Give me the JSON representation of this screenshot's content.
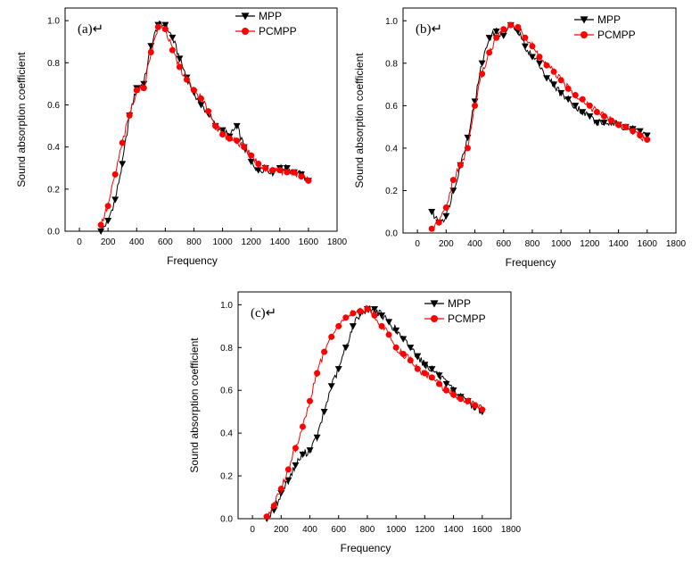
{
  "colors": {
    "mpp": "#000000",
    "pcmpp": "#ff0000"
  },
  "chart_data": [
    {
      "type": "line",
      "panel_label": "(a)↵",
      "xlabel": "Frequency",
      "ylabel": "Sound absorption coefficient",
      "xlim": [
        -100,
        1800
      ],
      "ylim": [
        0,
        1.06
      ],
      "xticks": [
        "0",
        "200",
        "400",
        "600",
        "800",
        "1000",
        "1200",
        "1400",
        "1600",
        "1800"
      ],
      "yticks": [
        "0.0",
        "0.2",
        "0.4",
        "0.6",
        "0.8",
        "1.0"
      ],
      "legend_position": "top-right",
      "series": [
        {
          "name": "MPP",
          "marker": "triangle-down",
          "x": [
            150,
            200,
            250,
            300,
            350,
            400,
            450,
            500,
            550,
            600,
            650,
            700,
            750,
            800,
            850,
            900,
            950,
            1000,
            1050,
            1100,
            1150,
            1200,
            1250,
            1300,
            1350,
            1400,
            1450,
            1500,
            1550,
            1600
          ],
          "y": [
            0.0,
            0.05,
            0.15,
            0.32,
            0.55,
            0.68,
            0.7,
            0.88,
            0.98,
            0.98,
            0.92,
            0.82,
            0.73,
            0.66,
            0.6,
            0.56,
            0.5,
            0.48,
            0.45,
            0.5,
            0.4,
            0.33,
            0.29,
            0.3,
            0.28,
            0.3,
            0.3,
            0.28,
            0.27,
            0.24
          ]
        },
        {
          "name": "PCMPP",
          "marker": "circle",
          "x": [
            150,
            200,
            250,
            300,
            350,
            400,
            450,
            500,
            550,
            600,
            650,
            700,
            750,
            800,
            850,
            900,
            950,
            1000,
            1050,
            1100,
            1150,
            1200,
            1250,
            1300,
            1350,
            1400,
            1450,
            1500,
            1550,
            1600
          ],
          "y": [
            0.03,
            0.12,
            0.27,
            0.42,
            0.55,
            0.67,
            0.68,
            0.85,
            0.97,
            0.96,
            0.86,
            0.78,
            0.72,
            0.67,
            0.63,
            0.57,
            0.5,
            0.46,
            0.44,
            0.43,
            0.4,
            0.36,
            0.32,
            0.3,
            0.29,
            0.29,
            0.28,
            0.28,
            0.26,
            0.24
          ]
        }
      ]
    },
    {
      "type": "line",
      "panel_label": "(b)↵",
      "xlabel": "Frequency",
      "ylabel": "Sound absorption coefficient",
      "xlim": [
        -100,
        1800
      ],
      "ylim": [
        0,
        1.06
      ],
      "xticks": [
        "0",
        "200",
        "400",
        "600",
        "800",
        "1000",
        "1200",
        "1400",
        "1600",
        "1800"
      ],
      "yticks": [
        "0.0",
        "0.2",
        "0.4",
        "0.6",
        "0.8",
        "1.0"
      ],
      "legend_position": "top-right",
      "series": [
        {
          "name": "MPP",
          "marker": "triangle-down",
          "x": [
            100,
            150,
            200,
            250,
            300,
            350,
            400,
            450,
            500,
            550,
            600,
            650,
            700,
            750,
            800,
            850,
            900,
            950,
            1000,
            1050,
            1100,
            1150,
            1200,
            1250,
            1300,
            1350,
            1400,
            1450,
            1500,
            1550,
            1600
          ],
          "y": [
            0.1,
            0.05,
            0.08,
            0.2,
            0.32,
            0.45,
            0.62,
            0.8,
            0.92,
            0.95,
            0.93,
            0.98,
            0.95,
            0.88,
            0.83,
            0.8,
            0.73,
            0.7,
            0.66,
            0.63,
            0.6,
            0.57,
            0.55,
            0.52,
            0.52,
            0.52,
            0.51,
            0.5,
            0.49,
            0.48,
            0.46
          ]
        },
        {
          "name": "PCMPP",
          "marker": "circle",
          "x": [
            100,
            150,
            200,
            250,
            300,
            350,
            400,
            450,
            500,
            550,
            600,
            650,
            700,
            750,
            800,
            850,
            900,
            950,
            1000,
            1050,
            1100,
            1150,
            1200,
            1250,
            1300,
            1350,
            1400,
            1450,
            1500,
            1550,
            1600
          ],
          "y": [
            0.02,
            0.05,
            0.12,
            0.25,
            0.32,
            0.4,
            0.6,
            0.75,
            0.85,
            0.92,
            0.96,
            0.98,
            0.97,
            0.92,
            0.88,
            0.83,
            0.79,
            0.76,
            0.72,
            0.68,
            0.65,
            0.63,
            0.6,
            0.57,
            0.55,
            0.53,
            0.51,
            0.5,
            0.48,
            0.46,
            0.44
          ]
        }
      ]
    },
    {
      "type": "line",
      "panel_label": "(c)↵",
      "xlabel": "Frequency",
      "ylabel": "Sound absorption coefficient",
      "xlim": [
        -100,
        1800
      ],
      "ylim": [
        0,
        1.06
      ],
      "xticks": [
        "0",
        "200",
        "400",
        "600",
        "800",
        "1000",
        "1200",
        "1400",
        "1600",
        "1800"
      ],
      "yticks": [
        "0.0",
        "0.2",
        "0.4",
        "0.6",
        "0.8",
        "1.0"
      ],
      "legend_position": "top-right",
      "series": [
        {
          "name": "MPP",
          "marker": "triangle-down",
          "x": [
            100,
            150,
            200,
            250,
            300,
            350,
            400,
            450,
            500,
            550,
            600,
            650,
            700,
            750,
            800,
            850,
            900,
            950,
            1000,
            1050,
            1100,
            1150,
            1200,
            1250,
            1300,
            1350,
            1400,
            1450,
            1500,
            1550,
            1600
          ],
          "y": [
            0.0,
            0.04,
            0.12,
            0.18,
            0.25,
            0.3,
            0.32,
            0.38,
            0.5,
            0.62,
            0.7,
            0.8,
            0.9,
            0.96,
            0.98,
            0.98,
            0.95,
            0.92,
            0.88,
            0.84,
            0.8,
            0.76,
            0.72,
            0.7,
            0.67,
            0.63,
            0.6,
            0.57,
            0.55,
            0.52,
            0.5
          ]
        },
        {
          "name": "PCMPP",
          "marker": "circle",
          "x": [
            100,
            150,
            200,
            250,
            300,
            350,
            400,
            450,
            500,
            550,
            600,
            650,
            700,
            750,
            800,
            850,
            900,
            950,
            1000,
            1050,
            1100,
            1150,
            1200,
            1250,
            1300,
            1350,
            1400,
            1450,
            1500,
            1550,
            1600
          ],
          "y": [
            0.01,
            0.06,
            0.14,
            0.23,
            0.33,
            0.43,
            0.55,
            0.68,
            0.78,
            0.85,
            0.9,
            0.94,
            0.96,
            0.97,
            0.98,
            0.95,
            0.9,
            0.86,
            0.8,
            0.77,
            0.74,
            0.7,
            0.68,
            0.66,
            0.63,
            0.6,
            0.58,
            0.56,
            0.55,
            0.53,
            0.51
          ]
        }
      ]
    }
  ]
}
